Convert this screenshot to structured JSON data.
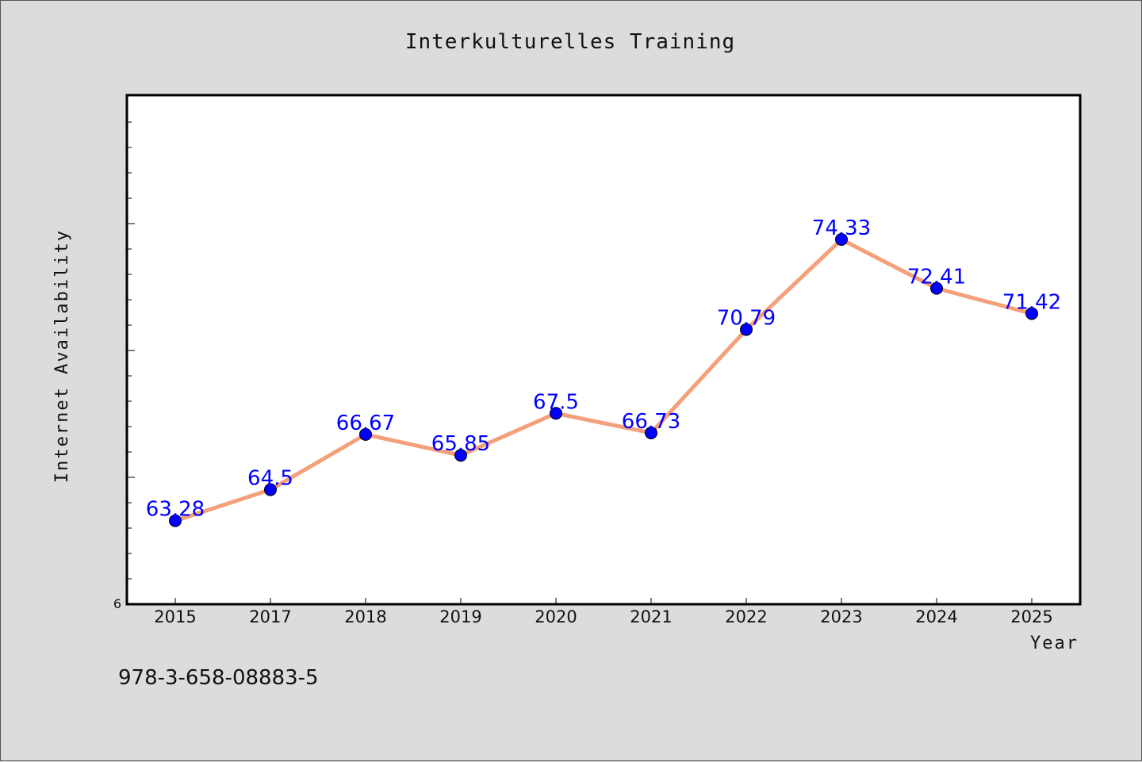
{
  "chart_data": {
    "type": "line",
    "title": "Interkulturelles Training",
    "xlabel": "Year",
    "ylabel": "Internet Availability",
    "x": [
      "2015",
      "2017",
      "2018",
      "2019",
      "2020",
      "2021",
      "2022",
      "2023",
      "2024",
      "2025"
    ],
    "series": [
      {
        "values": [
          63.28,
          64.5,
          66.67,
          65.85,
          67.5,
          66.73,
          70.79,
          74.33,
          72.41,
          71.42
        ],
        "labels": [
          "63.28",
          "64.5",
          "66.67",
          "65.85",
          "67.5",
          "66.73",
          "70.79",
          "74.33",
          "72.41",
          "71.42"
        ]
      }
    ],
    "y_tick_label": "6",
    "ylim": [
      60,
      80
    ],
    "grid": false,
    "line_color": "#f4a07a",
    "marker_color": "#0000ff",
    "label_color": "#0000ff"
  },
  "footnote": "978-3-658-08883-5"
}
